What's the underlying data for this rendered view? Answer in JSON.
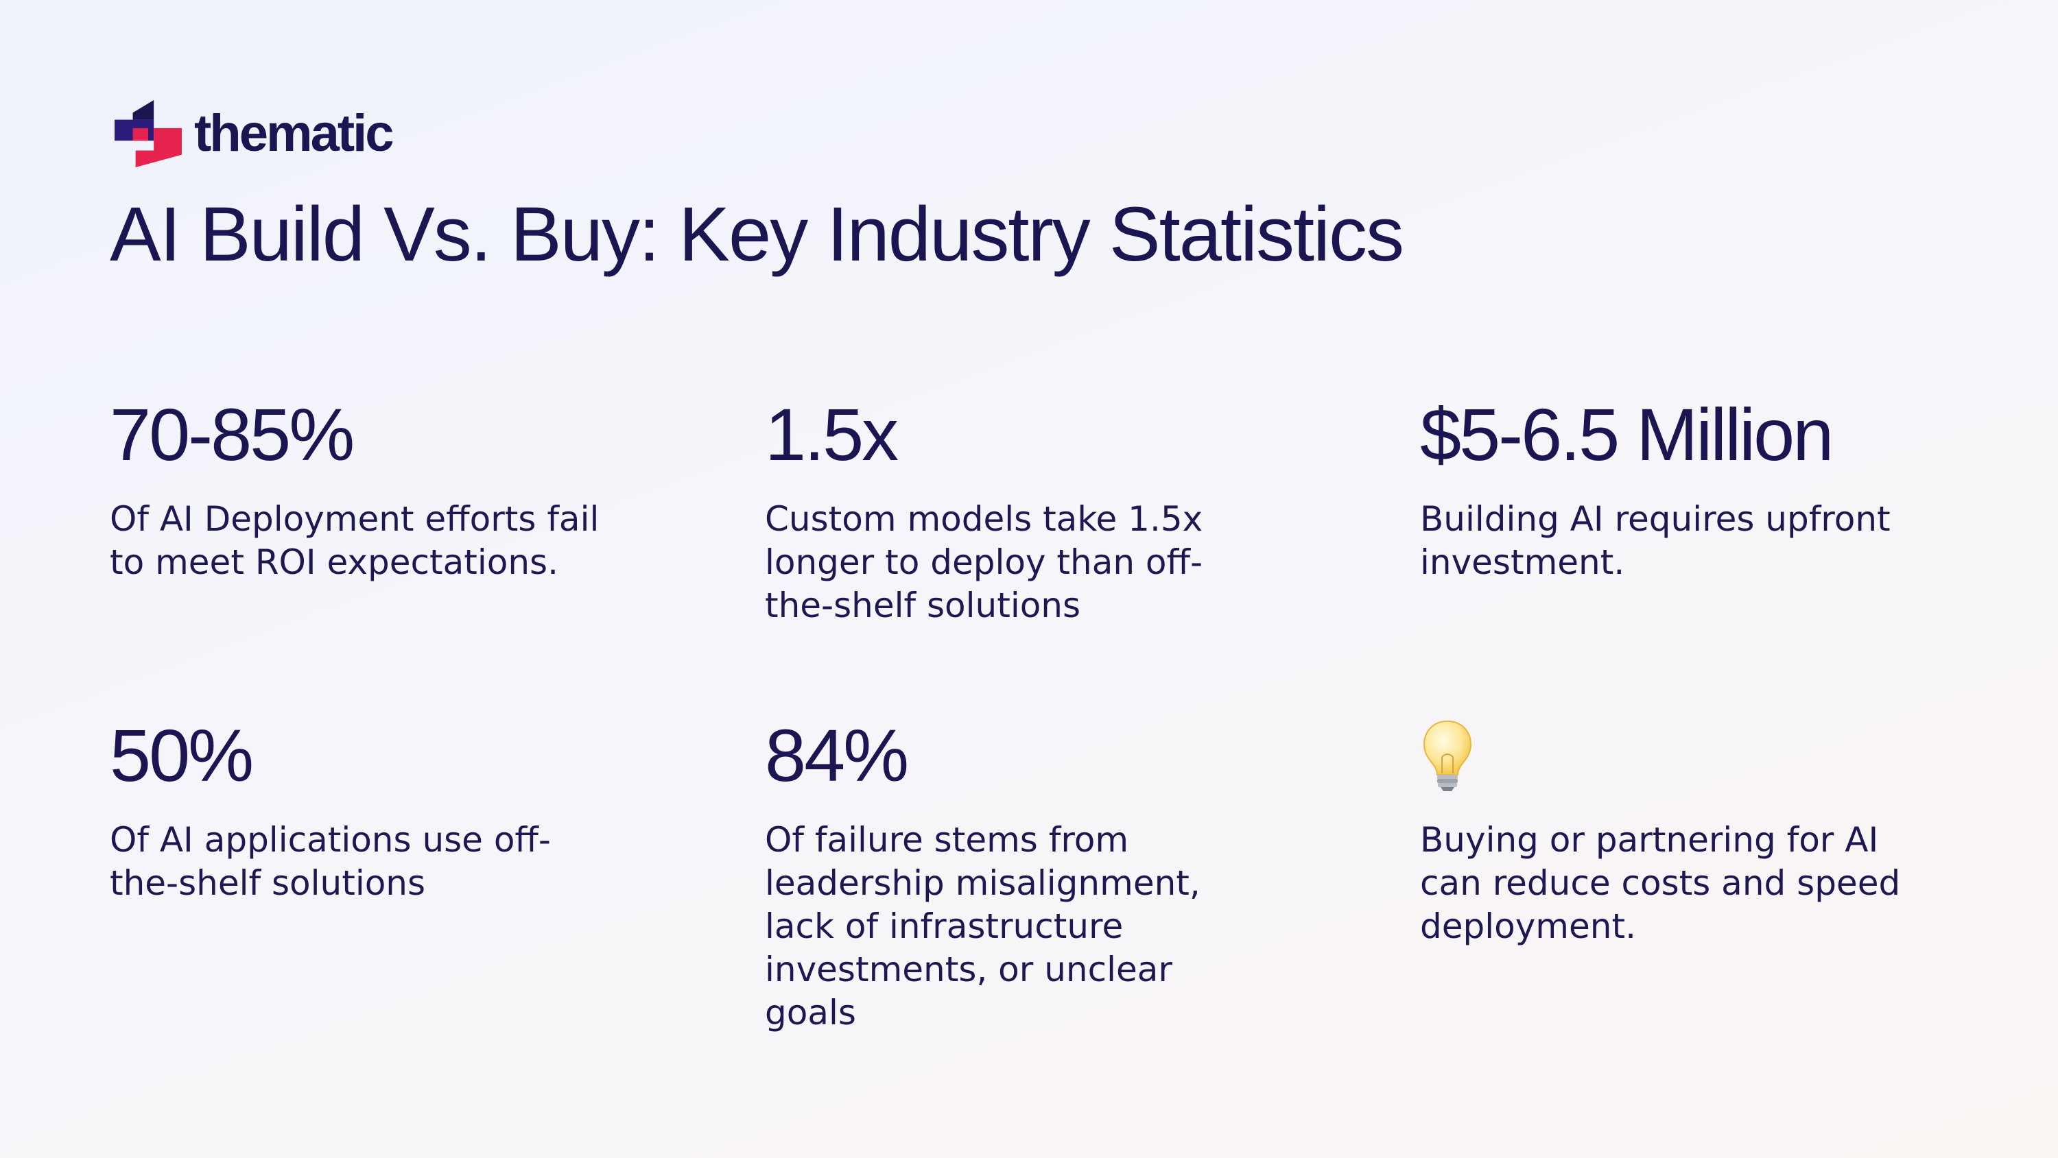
{
  "brand": {
    "name": "thematic",
    "colors": {
      "navy": "#1b1552",
      "magenta": "#e6234f",
      "indigo": "#2b1a7a"
    }
  },
  "page": {
    "title": "AI Build Vs. Buy: Key Industry Statistics"
  },
  "stats": [
    {
      "value": "70-85%",
      "description": "Of AI Deployment efforts fail to meet ROI expectations."
    },
    {
      "value": "1.5x",
      "description": "Custom models take 1.5x longer to deploy than off-the-shelf solutions"
    },
    {
      "value": "$5-6.5 Million",
      "description": "Building AI requires upfront investment."
    },
    {
      "value": "50%",
      "description": "Of AI applications use off-the-shelf solutions"
    },
    {
      "value": "84%",
      "description": "Of failure stems from leadership misalignment, lack of infrastructure investments, or unclear goals"
    },
    {
      "icon": "lightbulb-icon",
      "description": "Buying or partnering for AI can reduce costs and speed deployment."
    }
  ]
}
